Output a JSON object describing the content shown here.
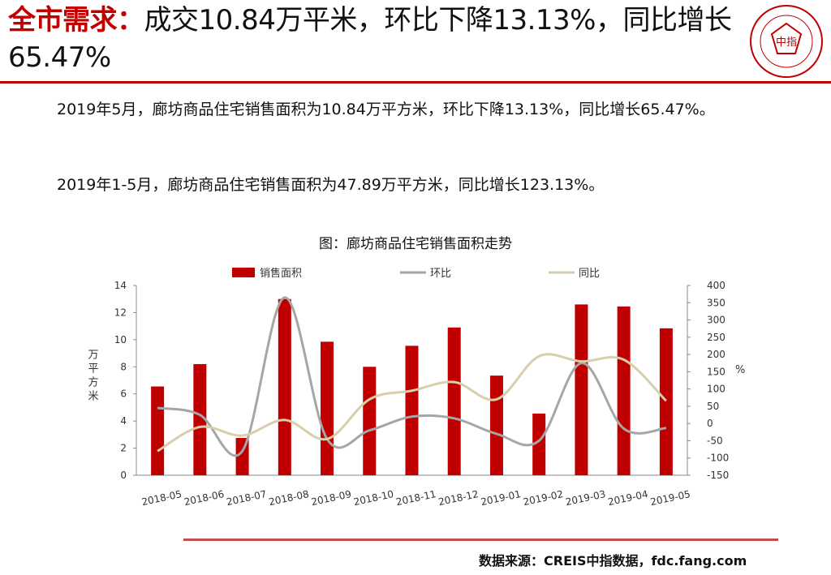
{
  "header": {
    "title_highlight": "全市需求：",
    "title_rest": "成交10.84万平米，环比下降13.13%，同比增长65.47%",
    "logo_text": "中指"
  },
  "body": {
    "paragraph_1": "2019年5月，廊坊商品住宅销售面积为10.84万平方米，环比下降13.13%，同比增长65.47%。",
    "paragraph_2": "2019年1-5月，廊坊商品住宅销售面积为47.89万平方米，同比增长123.13%。"
  },
  "footer": {
    "source": "数据来源：CREIS中指数据，fdc.fang.com"
  },
  "colors": {
    "accent": "#c00000",
    "bar": "#c00000",
    "mom": "#a6a6a6",
    "yoy": "#d7ceab",
    "source_rule": "#c0504d"
  },
  "chart_data": {
    "type": "bar",
    "title": "图：廊坊商品住宅销售面积走势",
    "categories": [
      "2018-05",
      "2018-06",
      "2018-07",
      "2018-08",
      "2018-09",
      "2018-10",
      "2018-11",
      "2018-12",
      "2019-01",
      "2019-02",
      "2019-03",
      "2019-04",
      "2019-05"
    ],
    "ylabel": "万平方米",
    "y2label": "%",
    "ylim": [
      0,
      14
    ],
    "y2lim": [
      -150,
      400
    ],
    "yticks": [
      0,
      2,
      4,
      6,
      8,
      10,
      12,
      14
    ],
    "y2ticks": [
      -150,
      -100,
      -50,
      0,
      50,
      100,
      150,
      200,
      250,
      300,
      350,
      400
    ],
    "legend_position": "top",
    "grid": false,
    "series": [
      {
        "name": "销售面积",
        "type": "bar",
        "axis": "left",
        "values": [
          6.55,
          8.2,
          2.75,
          13.0,
          9.85,
          8.0,
          9.55,
          10.9,
          7.35,
          4.55,
          12.6,
          12.45,
          10.84
        ]
      },
      {
        "name": "环比",
        "type": "line",
        "axis": "right",
        "values": [
          45,
          25,
          -80,
          365,
          -45,
          -20,
          20,
          15,
          -30,
          -50,
          175,
          -15,
          -13.13
        ]
      },
      {
        "name": "同比",
        "type": "line",
        "axis": "right",
        "values": [
          -80,
          -10,
          -35,
          10,
          -45,
          70,
          95,
          120,
          70,
          195,
          180,
          185,
          65.47
        ]
      }
    ]
  }
}
